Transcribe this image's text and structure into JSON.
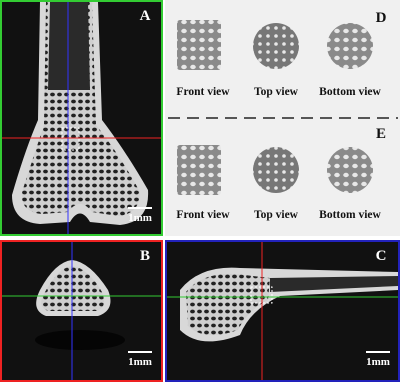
{
  "panels": {
    "a": {
      "label": "A",
      "scale": "1mm"
    },
    "b": {
      "label": "B",
      "scale": "1mm"
    },
    "c": {
      "label": "C",
      "scale": "1mm"
    },
    "d": {
      "label": "D",
      "views": [
        "Front view",
        "Top view",
        "Bottom view"
      ]
    },
    "e": {
      "label": "E",
      "views": [
        "Front view",
        "Top view",
        "Bottom view"
      ]
    }
  }
}
